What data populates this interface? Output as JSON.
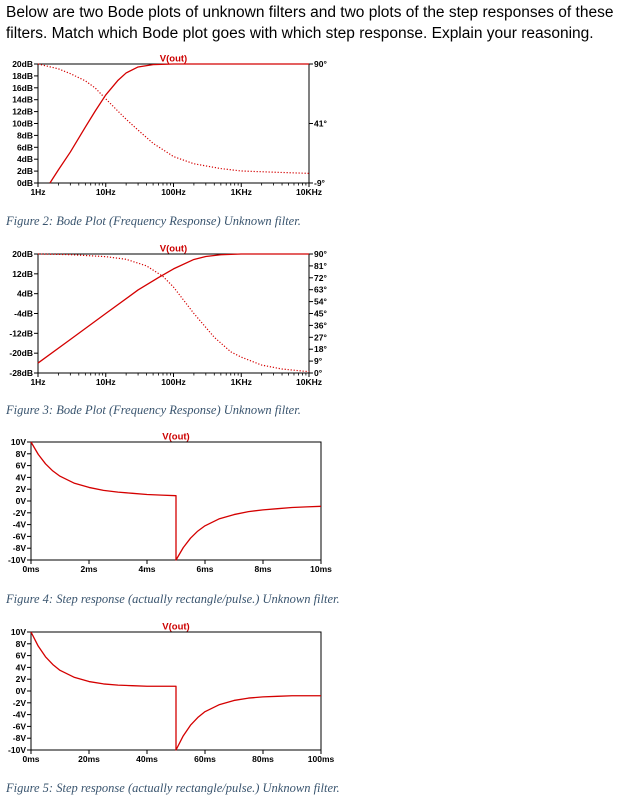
{
  "question": "Below are two Bode plots of unknown filters and two plots of the step responses of these filters. Match which Bode plot goes with which step response. Explain your reasoning.",
  "colors": {
    "trace": "#d40000",
    "caption": "#39546e",
    "frame": "#000000"
  },
  "chart_data": [
    {
      "type": "line",
      "title": "V(out)",
      "caption": "Figure 2: Bode Plot (Frequency Response) Unknown filter.",
      "x_scale": "log",
      "xlim": [
        1,
        10000
      ],
      "x_ticks": [
        "1Hz",
        "10Hz",
        "100Hz",
        "1KHz",
        "10KHz"
      ],
      "ylim": [
        0,
        20
      ],
      "y_ticks": [
        "20dB",
        "18dB",
        "16dB",
        "14dB",
        "12dB",
        "10dB",
        "8dB",
        "6dB",
        "4dB",
        "2dB",
        "0dB"
      ],
      "y2lim": [
        -9,
        90
      ],
      "y2_ticks": [
        "90°",
        "41°",
        "-9°"
      ],
      "grid": false,
      "series": [
        {
          "style": "solid",
          "axis": "left",
          "x": [
            1.5,
            2,
            3,
            5,
            7,
            10,
            15,
            20,
            30,
            50,
            100,
            200,
            1000,
            10000
          ],
          "y": [
            0,
            2.2,
            5.2,
            9.4,
            12.1,
            14.8,
            17.2,
            18.5,
            19.5,
            19.9,
            20,
            20,
            20,
            20
          ]
        },
        {
          "style": "dotted",
          "axis": "right",
          "x": [
            1,
            2,
            3,
            5,
            7,
            10,
            15,
            20,
            30,
            50,
            100,
            200,
            500,
            1000,
            3000,
            10000
          ],
          "y": [
            90,
            86,
            82,
            76,
            70,
            61,
            51,
            44,
            35,
            24,
            13,
            7,
            3,
            1,
            0,
            -1
          ]
        }
      ]
    },
    {
      "type": "line",
      "title": "V(out)",
      "caption": "Figure 3: Bode Plot (Frequency Response) Unknown filter.",
      "x_scale": "log",
      "xlim": [
        1,
        10000
      ],
      "x_ticks": [
        "1Hz",
        "10Hz",
        "100Hz",
        "1KHz",
        "10KHz"
      ],
      "ylim": [
        -28,
        20
      ],
      "y_ticks": [
        "20dB",
        "12dB",
        "4dB",
        "-4dB",
        "-12dB",
        "-20dB",
        "-28dB"
      ],
      "y2lim": [
        0,
        90
      ],
      "y2_ticks": [
        "90°",
        "81°",
        "72°",
        "63°",
        "54°",
        "45°",
        "36°",
        "27°",
        "18°",
        "9°",
        "0°"
      ],
      "grid": false,
      "series": [
        {
          "style": "solid",
          "axis": "left",
          "x": [
            1,
            3,
            10,
            30,
            60,
            100,
            200,
            300,
            500,
            1000,
            10000
          ],
          "y": [
            -24,
            -14.5,
            -4,
            5.5,
            10.5,
            14,
            17.8,
            19,
            19.7,
            20,
            20
          ]
        },
        {
          "style": "dotted",
          "axis": "right",
          "x": [
            1,
            3,
            10,
            20,
            40,
            70,
            100,
            200,
            400,
            700,
            1000,
            2000,
            4000,
            10000
          ],
          "y": [
            90,
            89.5,
            88,
            86,
            81,
            73,
            65,
            45,
            27,
            16,
            12,
            6,
            3,
            1
          ]
        }
      ]
    },
    {
      "type": "line",
      "title": "V(out)",
      "caption": "Figure 4: Step response (actually rectangle/pulse.) Unknown filter.",
      "xlim": [
        0,
        10
      ],
      "x_ticks": [
        "0ms",
        "2ms",
        "4ms",
        "6ms",
        "8ms",
        "10ms"
      ],
      "ylim": [
        -10,
        10
      ],
      "y_ticks": [
        "10V",
        "8V",
        "6V",
        "4V",
        "2V",
        "0V",
        "-2V",
        "-4V",
        "-6V",
        "-8V",
        "-10V"
      ],
      "grid": false,
      "series": [
        {
          "style": "solid",
          "x": [
            0,
            0.25,
            0.5,
            0.75,
            1,
            1.5,
            2,
            2.5,
            3,
            3.5,
            4,
            4.5,
            5,
            5,
            5.25,
            5.5,
            5.75,
            6,
            6.5,
            7,
            7.5,
            8,
            8.5,
            9,
            9.5,
            10
          ],
          "y": [
            10,
            7.9,
            6.3,
            5.1,
            4.2,
            3,
            2.3,
            1.8,
            1.5,
            1.3,
            1.1,
            1,
            0.9,
            -10,
            -7.9,
            -6.3,
            -5.1,
            -4.2,
            -3,
            -2.3,
            -1.8,
            -1.5,
            -1.3,
            -1.1,
            -1,
            -0.9
          ]
        }
      ]
    },
    {
      "type": "line",
      "title": "V(out)",
      "caption": "Figure 5: Step response (actually rectangle/pulse.) Unknown filter.",
      "xlim": [
        0,
        100
      ],
      "x_ticks": [
        "0ms",
        "20ms",
        "40ms",
        "60ms",
        "80ms",
        "100ms"
      ],
      "ylim": [
        -10,
        10
      ],
      "y_ticks": [
        "10V",
        "8V",
        "6V",
        "4V",
        "2V",
        "0V",
        "-2V",
        "-4V",
        "-6V",
        "-8V",
        "-10V"
      ],
      "grid": false,
      "series": [
        {
          "style": "solid",
          "x": [
            0,
            2.5,
            5,
            7.5,
            10,
            15,
            20,
            25,
            30,
            35,
            40,
            45,
            50,
            50,
            52.5,
            55,
            57.5,
            60,
            65,
            70,
            75,
            80,
            85,
            90,
            95,
            100
          ],
          "y": [
            10,
            7.6,
            5.8,
            4.5,
            3.5,
            2.3,
            1.6,
            1.2,
            1,
            0.9,
            0.8,
            0.8,
            0.8,
            -10,
            -7.6,
            -5.8,
            -4.5,
            -3.5,
            -2.3,
            -1.6,
            -1.2,
            -1,
            -0.9,
            -0.8,
            -0.8,
            -0.8
          ]
        }
      ]
    }
  ]
}
